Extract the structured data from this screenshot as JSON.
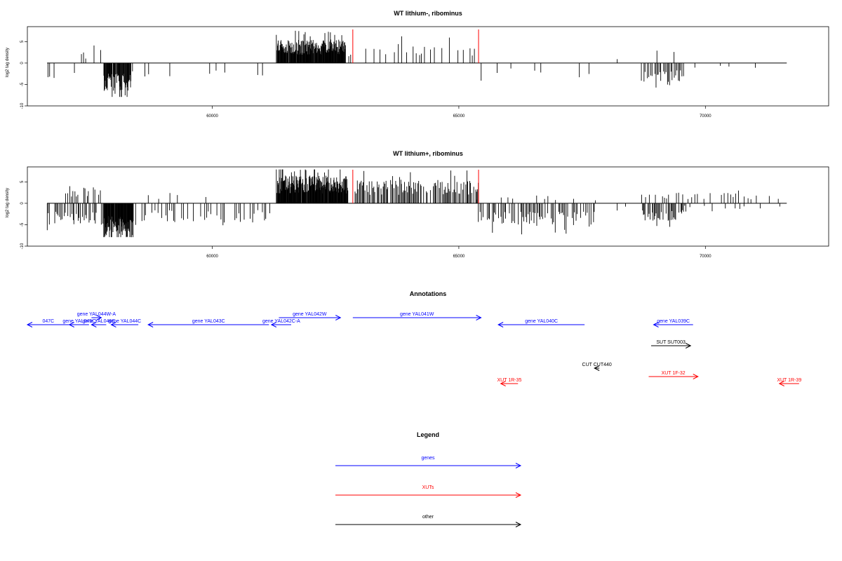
{
  "chart_data": [
    {
      "type": "bar",
      "title": "WT lithium-, ribominus",
      "ylabel": "log2 tag density",
      "xlabel": "",
      "xlim": [
        56250,
        72500
      ],
      "ylim": [
        -10,
        8.5
      ],
      "y_ticks": [
        -10,
        -5,
        0,
        5
      ],
      "y_tick_labels": [
        "-10",
        "-5",
        "0",
        "5"
      ],
      "x_ticks": [
        60000,
        65000,
        70000
      ],
      "x_tick_labels": [
        "60000",
        "65000",
        "70000"
      ],
      "baseline_range": [
        56650,
        71650
      ],
      "highlight_positions": [
        62850,
        65400
      ],
      "highlight_color": "#ff0000",
      "bar_color": "#000000",
      "segments": [
        {
          "start": 56650,
          "end": 57300,
          "sign": -1,
          "step": 70,
          "amp": 3.5,
          "fill": 0.45
        },
        {
          "start": 57350,
          "end": 57450,
          "sign": 1,
          "step": 40,
          "amp": 2.5,
          "fill": 0.8
        },
        {
          "start": 57550,
          "end": 57750,
          "sign": 1,
          "step": 60,
          "amp": 5.5,
          "fill": 0.5
        },
        {
          "start": 57800,
          "end": 58350,
          "sign": -1,
          "step": 10,
          "amp": 6.5,
          "fill": 0.95
        },
        {
          "start": 58400,
          "end": 61200,
          "sign": -1,
          "step": 110,
          "amp": 3.5,
          "fill": 0.3
        },
        {
          "start": 61300,
          "end": 62700,
          "sign": 1,
          "step": 8,
          "amp": 5.5,
          "fill": 0.96
        },
        {
          "start": 62750,
          "end": 65350,
          "sign": 1,
          "step": 60,
          "amp": 4.5,
          "fill": 0.45
        },
        {
          "start": 65450,
          "end": 68200,
          "sign": -1,
          "step": 100,
          "amp": 3.5,
          "fill": 0.35
        },
        {
          "start": 68200,
          "end": 68650,
          "sign": 1,
          "step": 100,
          "amp": 1.5,
          "fill": 0.3
        },
        {
          "start": 68700,
          "end": 69550,
          "sign": -1,
          "step": 25,
          "amp": 4.5,
          "fill": 0.75
        },
        {
          "start": 69000,
          "end": 69400,
          "sign": 1,
          "step": 70,
          "amp": 3.0,
          "fill": 0.5
        },
        {
          "start": 69600,
          "end": 71650,
          "sign": -1,
          "step": 180,
          "amp": 1.5,
          "fill": 0.15
        }
      ]
    },
    {
      "type": "bar",
      "title": "WT lithium+, ribominus",
      "ylabel": "log2 tag density",
      "xlabel": "",
      "xlim": [
        56250,
        72500
      ],
      "ylim": [
        -10,
        8.5
      ],
      "y_ticks": [
        -10,
        -5,
        0,
        5
      ],
      "y_tick_labels": [
        "-10",
        "-5",
        "0",
        "5"
      ],
      "x_ticks": [
        60000,
        65000,
        70000
      ],
      "x_tick_labels": [
        "60000",
        "65000",
        "70000"
      ],
      "baseline_range": [
        56650,
        71650
      ],
      "highlight_positions": [
        62850,
        65400
      ],
      "highlight_color": "#ff0000",
      "bar_color": "#000000",
      "segments": [
        {
          "start": 56650,
          "end": 57800,
          "sign": -1,
          "step": 25,
          "amp": 5.0,
          "fill": 0.7
        },
        {
          "start": 57000,
          "end": 57800,
          "sign": 1,
          "step": 35,
          "amp": 4.0,
          "fill": 0.6
        },
        {
          "start": 57800,
          "end": 58400,
          "sign": -1,
          "step": 8,
          "amp": 8.5,
          "fill": 0.97
        },
        {
          "start": 58450,
          "end": 61200,
          "sign": -1,
          "step": 40,
          "amp": 4.5,
          "fill": 0.6
        },
        {
          "start": 58450,
          "end": 61200,
          "sign": 1,
          "step": 120,
          "amp": 2.5,
          "fill": 0.3
        },
        {
          "start": 61300,
          "end": 62750,
          "sign": 1,
          "step": 8,
          "amp": 6.5,
          "fill": 0.97
        },
        {
          "start": 62900,
          "end": 65400,
          "sign": 1,
          "step": 20,
          "amp": 5.5,
          "fill": 0.8
        },
        {
          "start": 65400,
          "end": 67800,
          "sign": -1,
          "step": 25,
          "amp": 5.5,
          "fill": 0.75
        },
        {
          "start": 65400,
          "end": 67800,
          "sign": 1,
          "step": 120,
          "amp": 2.0,
          "fill": 0.3
        },
        {
          "start": 67900,
          "end": 68600,
          "sign": -1,
          "step": 150,
          "amp": 2.0,
          "fill": 0.2
        },
        {
          "start": 68700,
          "end": 69600,
          "sign": -1,
          "step": 20,
          "amp": 4.5,
          "fill": 0.8
        },
        {
          "start": 68700,
          "end": 69600,
          "sign": 1,
          "step": 40,
          "amp": 3.0,
          "fill": 0.5
        },
        {
          "start": 69600,
          "end": 71650,
          "sign": 1,
          "step": 60,
          "amp": 2.5,
          "fill": 0.5
        },
        {
          "start": 69600,
          "end": 71650,
          "sign": -1,
          "step": 90,
          "amp": 1.5,
          "fill": 0.3
        }
      ]
    }
  ],
  "annotations": {
    "title": "Annotations",
    "items": [
      {
        "label": "047C",
        "start": 56250,
        "end": 57100,
        "row": 1,
        "strand": "-",
        "color": "#0000ff"
      },
      {
        "label": "gene YAL044W-A",
        "start": 57550,
        "end": 57750,
        "row": 0,
        "strand": "+",
        "color": "#0000ff"
      },
      {
        "label": "gene YAL045C",
        "start": 57100,
        "end": 57500,
        "row": 1,
        "strand": "-",
        "color": "#0000ff"
      },
      {
        "label": "gene YAL046C",
        "start": 57550,
        "end": 57850,
        "row": 1,
        "strand": "-",
        "color": "#0000ff"
      },
      {
        "label": "gene YAL044C",
        "start": 57950,
        "end": 58500,
        "row": 1,
        "strand": "-",
        "color": "#0000ff"
      },
      {
        "label": "gene YAL043C",
        "start": 58700,
        "end": 61150,
        "row": 1,
        "strand": "-",
        "color": "#0000ff"
      },
      {
        "label": "gene YAL042C-A",
        "start": 61200,
        "end": 61600,
        "row": 1,
        "strand": "-",
        "color": "#0000ff"
      },
      {
        "label": "gene YAL042W",
        "start": 61350,
        "end": 62600,
        "row": 0,
        "strand": "+",
        "color": "#0000ff"
      },
      {
        "label": "gene YAL041W",
        "start": 62850,
        "end": 65450,
        "row": 0,
        "strand": "+",
        "color": "#0000ff"
      },
      {
        "label": "gene YAL040C",
        "start": 65800,
        "end": 67550,
        "row": 1,
        "strand": "-",
        "color": "#0000ff"
      },
      {
        "label": "gene YAL039C",
        "start": 68950,
        "end": 69750,
        "row": 1,
        "strand": "-",
        "color": "#0000ff"
      },
      {
        "label": "SUT SUT003",
        "start": 68900,
        "end": 69700,
        "row": 2,
        "strand": "+",
        "color": "#000000"
      },
      {
        "label": "CUT CUT440",
        "start": 67750,
        "end": 67850,
        "row": 3,
        "strand": "-",
        "color": "#000000"
      },
      {
        "label": "XUT 1F-32",
        "start": 68850,
        "end": 69850,
        "row": 4,
        "strand": "+",
        "color": "#ff0000"
      },
      {
        "label": "XUT 1R-35",
        "start": 65850,
        "end": 66200,
        "row": 5,
        "strand": "-",
        "color": "#ff0000"
      },
      {
        "label": "XUT 1R-39",
        "start": 71500,
        "end": 71900,
        "row": 5,
        "strand": "-",
        "color": "#ff0000"
      }
    ]
  },
  "legend": {
    "title": "Legend",
    "items": [
      {
        "label": "genes",
        "color": "#0000ff"
      },
      {
        "label": "XUTs",
        "color": "#ff0000"
      },
      {
        "label": "other",
        "color": "#000000"
      }
    ]
  }
}
